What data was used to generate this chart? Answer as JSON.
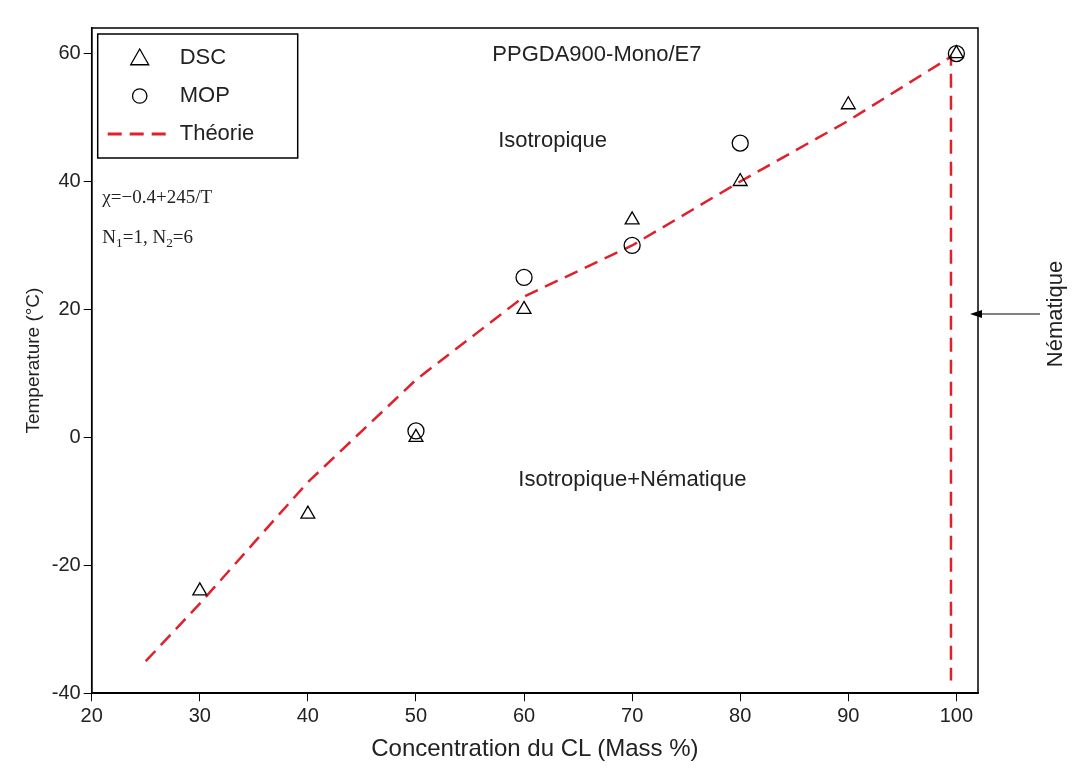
{
  "chart_data": {
    "type": "scatter",
    "xlabel": "Concentration du CL (Mass %)",
    "ylabel": "Temperature (°C)",
    "xlim": [
      20,
      102
    ],
    "ylim": [
      -40,
      64
    ],
    "xticks": [
      20,
      30,
      40,
      50,
      60,
      70,
      80,
      90,
      100
    ],
    "yticks": [
      -40,
      -20,
      0,
      20,
      40,
      60
    ],
    "x": [
      30,
      40,
      50,
      60,
      70,
      80,
      90,
      100
    ],
    "series": [
      {
        "name": "DSC",
        "marker": "triangle",
        "color": "#000000",
        "values": [
          -24,
          -12,
          0,
          20,
          34,
          40,
          52,
          60
        ]
      },
      {
        "name": "MOP",
        "marker": "circle",
        "color": "#000000",
        "x": [
          50,
          60,
          70,
          80,
          100
        ],
        "values": [
          1,
          25,
          30,
          46,
          60
        ]
      },
      {
        "name": "Théorie",
        "type": "line",
        "marker": "none",
        "line_style": "dashed",
        "color": "#e0202a",
        "x": [
          25,
          30,
          40,
          50,
          60,
          70,
          80,
          90,
          99.5,
          99.5
        ],
        "values": [
          -35,
          -26,
          -7,
          9,
          22,
          30,
          40,
          49.5,
          59.5,
          -38
        ]
      }
    ],
    "legend": "top left",
    "grid": false,
    "annotations": [
      "PPGDA900-Mono/E7",
      "Isotropique",
      "Isotropique+Nématique",
      "χ=−0.4+245/T",
      "N$_{1}$=1, N$_{2}$=6",
      "Nématique"
    ]
  }
}
